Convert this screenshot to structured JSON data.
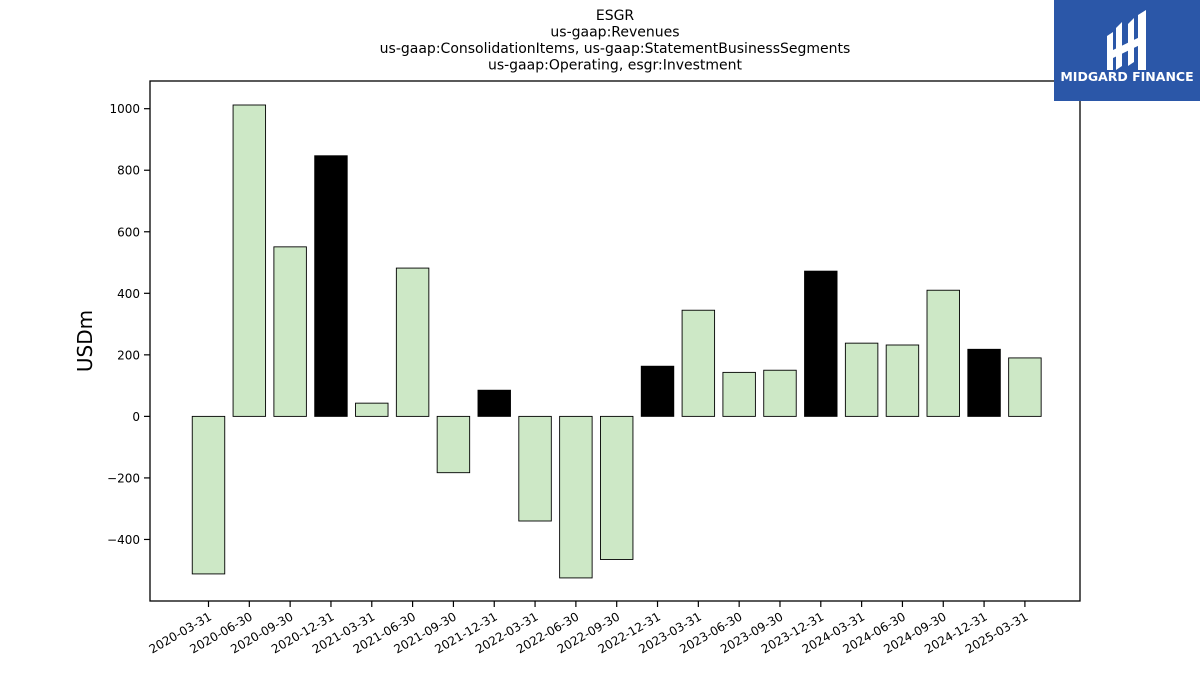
{
  "logo": {
    "text": "MIDGARD FINANCE",
    "bg_color": "#2b57a8"
  },
  "chart_data": {
    "type": "bar",
    "title_lines": [
      "ESGR",
      "us-gaap:Revenues",
      "us-gaap:ConsolidationItems, us-gaap:StatementBusinessSegments",
      "us-gaap:Operating, esgr:Investment"
    ],
    "ylabel": "USDm",
    "xlabel": "",
    "ylim": [
      -600,
      1090
    ],
    "yticks": [
      -400,
      -200,
      0,
      200,
      400,
      600,
      800,
      1000
    ],
    "categories": [
      "2020-03-31",
      "2020-06-30",
      "2020-09-30",
      "2020-12-31",
      "2021-03-31",
      "2021-06-30",
      "2021-09-30",
      "2021-12-31",
      "2022-03-31",
      "2022-06-30",
      "2022-09-30",
      "2022-12-31",
      "2023-03-31",
      "2023-06-30",
      "2023-09-30",
      "2023-12-31",
      "2024-03-31",
      "2024-06-30",
      "2024-09-30",
      "2024-12-31",
      "2025-03-31"
    ],
    "values": [
      -512,
      1012,
      551,
      847,
      43,
      482,
      -183,
      85,
      -340,
      -525,
      -465,
      163,
      345,
      143,
      150,
      472,
      238,
      232,
      410,
      218,
      190
    ],
    "bar_colors": [
      "#cde8c6",
      "#cde8c6",
      "#cde8c6",
      "#000000",
      "#cde8c6",
      "#cde8c6",
      "#cde8c6",
      "#000000",
      "#cde8c6",
      "#cde8c6",
      "#cde8c6",
      "#000000",
      "#cde8c6",
      "#cde8c6",
      "#cde8c6",
      "#000000",
      "#cde8c6",
      "#cde8c6",
      "#cde8c6",
      "#000000",
      "#cde8c6"
    ],
    "grid": false,
    "legend": "none"
  }
}
